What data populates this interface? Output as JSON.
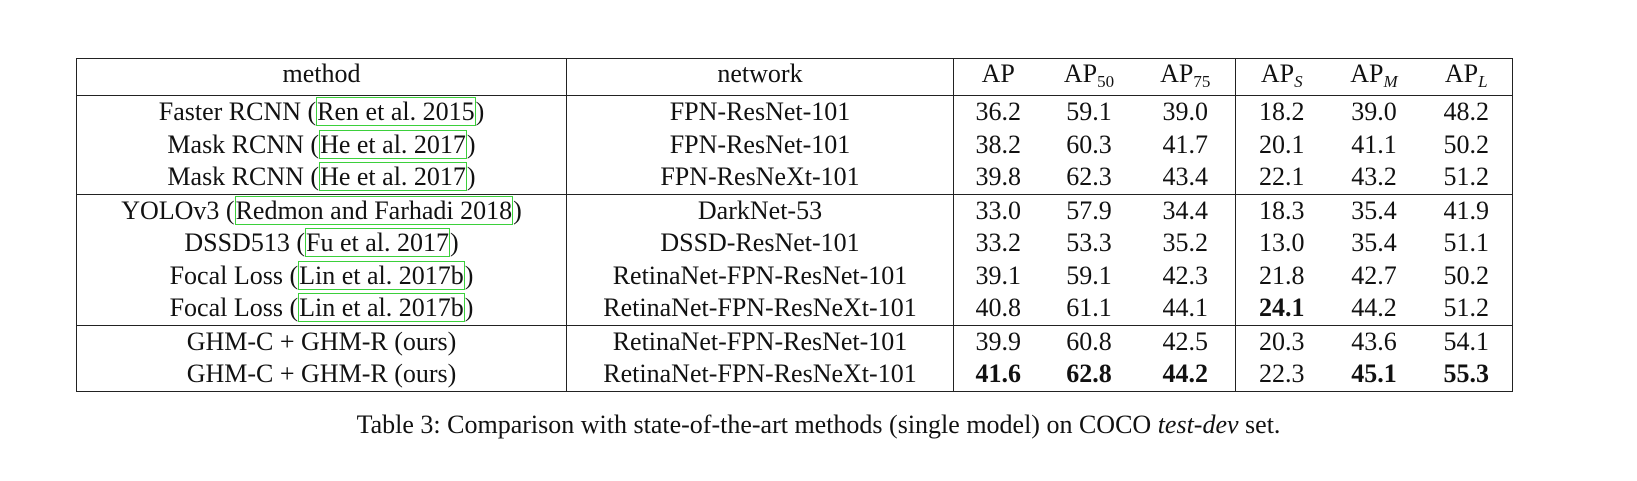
{
  "table": {
    "header": [
      {
        "base": "method"
      },
      {
        "base": "network"
      },
      {
        "base": "AP"
      },
      {
        "base": "AP",
        "sub": "50"
      },
      {
        "base": "AP",
        "sub": "75"
      },
      {
        "base": "AP",
        "sub": "S",
        "sub_italic": true
      },
      {
        "base": "AP",
        "sub": "M",
        "sub_italic": true
      },
      {
        "base": "AP",
        "sub": "L",
        "sub_italic": true
      }
    ],
    "groups": [
      [
        {
          "method": {
            "pre": "Faster RCNN (",
            "cite": "Ren et al. 2015",
            "post": ")"
          },
          "network": "FPN-ResNet-101",
          "values": [
            "36.2",
            "59.1",
            "39.0",
            "18.2",
            "39.0",
            "48.2"
          ],
          "bold": []
        },
        {
          "method": {
            "pre": "Mask RCNN (",
            "cite": "He et al. 2017",
            "post": ")"
          },
          "network": "FPN-ResNet-101",
          "values": [
            "38.2",
            "60.3",
            "41.7",
            "20.1",
            "41.1",
            "50.2"
          ],
          "bold": []
        },
        {
          "method": {
            "pre": "Mask RCNN (",
            "cite": "He et al. 2017",
            "post": ")"
          },
          "network": "FPN-ResNeXt-101",
          "values": [
            "39.8",
            "62.3",
            "43.4",
            "22.1",
            "43.2",
            "51.2"
          ],
          "bold": []
        }
      ],
      [
        {
          "method": {
            "pre": "YOLOv3 (",
            "cite": "Redmon and Farhadi 2018",
            "post": ")"
          },
          "network": "DarkNet-53",
          "values": [
            "33.0",
            "57.9",
            "34.4",
            "18.3",
            "35.4",
            "41.9"
          ],
          "bold": []
        },
        {
          "method": {
            "pre": "DSSD513 (",
            "cite": "Fu et al. 2017",
            "post": ")"
          },
          "network": "DSSD-ResNet-101",
          "values": [
            "33.2",
            "53.3",
            "35.2",
            "13.0",
            "35.4",
            "51.1"
          ],
          "bold": []
        },
        {
          "method": {
            "pre": "Focal Loss (",
            "cite": "Lin et al. 2017b",
            "post": ")"
          },
          "network": "RetinaNet-FPN-ResNet-101",
          "values": [
            "39.1",
            "59.1",
            "42.3",
            "21.8",
            "42.7",
            "50.2"
          ],
          "bold": []
        },
        {
          "method": {
            "pre": "Focal Loss (",
            "cite": "Lin et al. 2017b",
            "post": ")"
          },
          "network": "RetinaNet-FPN-ResNeXt-101",
          "values": [
            "40.8",
            "61.1",
            "44.1",
            "24.1",
            "44.2",
            "51.2"
          ],
          "bold": [
            3
          ]
        }
      ],
      [
        {
          "method": {
            "pre": "GHM-C + GHM-R (ours)"
          },
          "network": "RetinaNet-FPN-ResNet-101",
          "values": [
            "39.9",
            "60.8",
            "42.5",
            "20.3",
            "43.6",
            "54.1"
          ],
          "bold": []
        },
        {
          "method": {
            "pre": "GHM-C + GHM-R (ours)"
          },
          "network": "RetinaNet-FPN-ResNeXt-101",
          "values": [
            "41.6",
            "62.8",
            "44.2",
            "22.3",
            "45.1",
            "55.3"
          ],
          "bold": [
            0,
            1,
            2,
            4,
            5
          ]
        }
      ]
    ],
    "caption": {
      "pre": "Table 3: Comparison with state-of-the-art methods (single model) on COCO ",
      "italic": "test-dev",
      "post": " set."
    }
  }
}
